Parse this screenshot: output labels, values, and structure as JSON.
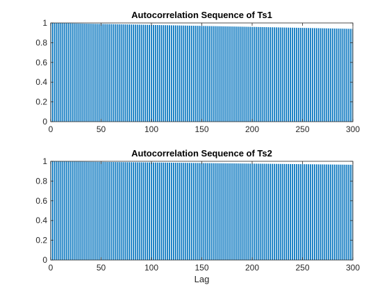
{
  "chart_data": [
    {
      "type": "bar",
      "title": "Autocorrelation Sequence of Ts1",
      "xlabel": "",
      "ylabel": "",
      "xlim": [
        0,
        300
      ],
      "ylim": [
        0,
        1
      ],
      "xticks": [
        "0",
        "50",
        "100",
        "150",
        "200",
        "250",
        "300"
      ],
      "yticks": [
        "0",
        "0.2",
        "0.4",
        "0.6",
        "0.8",
        "1"
      ],
      "lag_start": 0,
      "lag_end": 300,
      "lag_step": 2,
      "value_at_lag_start": 1.0,
      "value_at_lag_end": 0.94,
      "bar_color": "#0072bd",
      "grid": false
    },
    {
      "type": "bar",
      "title": "Autocorrelation Sequence of Ts2",
      "xlabel": "Lag",
      "ylabel": "",
      "xlim": [
        0,
        300
      ],
      "ylim": [
        0,
        1
      ],
      "xticks": [
        "0",
        "50",
        "100",
        "150",
        "200",
        "250",
        "300"
      ],
      "yticks": [
        "0",
        "0.2",
        "0.4",
        "0.6",
        "0.8",
        "1"
      ],
      "lag_start": 0,
      "lag_end": 300,
      "lag_step": 2,
      "value_at_lag_start": 1.0,
      "value_at_lag_end": 0.965,
      "bar_color": "#0072bd",
      "grid": false
    }
  ]
}
